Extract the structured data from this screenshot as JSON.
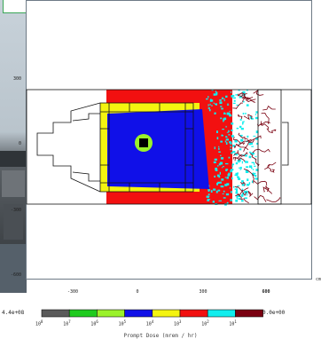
{
  "chart_data": {
    "type": "heatmap",
    "title": "",
    "x_ticks": [
      "-300",
      "0",
      "300",
      "600"
    ],
    "y_ticks": [
      "300",
      "0",
      "-300",
      "-600"
    ],
    "x_unit_label": "cm",
    "colorbar": {
      "max_label": "4.4e+08",
      "min_label": "0.0e+00",
      "colors": [
        "#5a5a5a",
        "#1ecb1e",
        "#9af22a",
        "#1010e8",
        "#f4f410",
        "#f21010",
        "#10eeee",
        "#7a0010"
      ],
      "tick_bases": [
        "10",
        "10",
        "10",
        "10",
        "10",
        "10",
        "10",
        "10"
      ],
      "tick_exponents": [
        "8",
        "7",
        "6",
        "5",
        "4",
        "3",
        "2",
        "1"
      ],
      "title": "Prompt Dose (mrem / hr)"
    },
    "dose_regions": [
      {
        "level": "10^1 - 10^2",
        "color": "#7a0010",
        "description": "scattered outermost tendrils"
      },
      {
        "level": "10^2 - 10^3",
        "color": "#10eeee",
        "description": "speckled halo"
      },
      {
        "level": "10^3 - 10^4",
        "color": "#f21010",
        "description": "surrounding band"
      },
      {
        "level": "10^4 - 10^5",
        "color": "#f4f410",
        "description": "shield region"
      },
      {
        "level": "10^5 - 10^6",
        "color": "#1010e8",
        "description": "inner chamber"
      },
      {
        "level": "10^6 - 10^7",
        "color": "#9af22a",
        "description": "ring around source"
      },
      {
        "level": "10^8",
        "color": "#000000",
        "description": "source core"
      }
    ]
  }
}
